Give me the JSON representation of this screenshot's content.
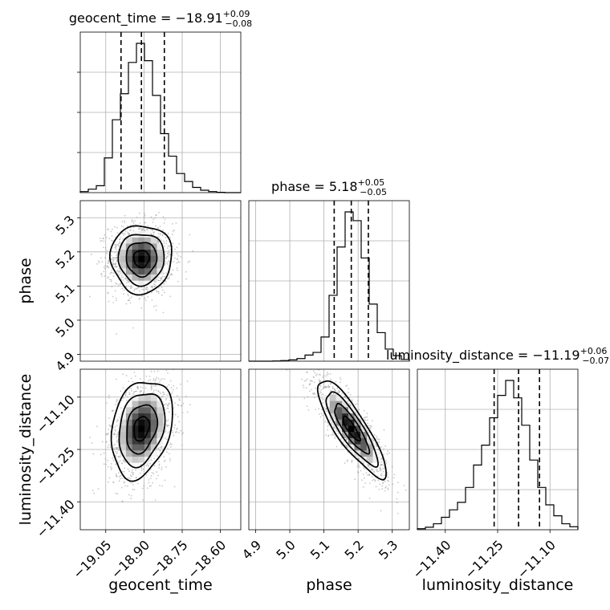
{
  "chart_data": {
    "type": "corner",
    "grid": true,
    "parameters": [
      {
        "name": "geocent_time",
        "xlabel": "geocent_time",
        "ylabel": "",
        "range": [
          -19.15,
          -18.52
        ],
        "ticks": [
          {
            "v": -19.05,
            "label": "−19.05"
          },
          {
            "v": -18.9,
            "label": "−18.90"
          },
          {
            "v": -18.75,
            "label": "−18.75"
          },
          {
            "v": -18.6,
            "label": "−18.60"
          }
        ],
        "title": {
          "main": "geocent_time = −18.91",
          "sup": "+0.09",
          "sub": "−0.08"
        },
        "quantiles": [
          -18.99,
          -18.91,
          -18.82
        ],
        "hist_edges": [
          -19.15,
          -18.52
        ],
        "hist_counts": [
          3,
          10,
          20,
          100,
          210,
          285,
          375,
          430,
          380,
          280,
          170,
          105,
          55,
          32,
          15,
          7,
          3,
          1,
          0,
          0
        ]
      },
      {
        "name": "phase",
        "xlabel": "phase",
        "ylabel": "phase",
        "range": [
          4.88,
          5.35
        ],
        "ticks": [
          {
            "v": 4.9,
            "label": "4.9"
          },
          {
            "v": 5.0,
            "label": "5.0"
          },
          {
            "v": 5.1,
            "label": "5.1"
          },
          {
            "v": 5.2,
            "label": "5.2"
          },
          {
            "v": 5.3,
            "label": "5.3"
          }
        ],
        "title": {
          "main": "phase = 5.18",
          "sup": "+0.05",
          "sub": "−0.05"
        },
        "quantiles": [
          5.13,
          5.18,
          5.23
        ],
        "hist_edges": [
          4.88,
          5.35
        ],
        "hist_counts": [
          0,
          0,
          0,
          1,
          3,
          6,
          12,
          28,
          40,
          110,
          300,
          520,
          680,
          640,
          470,
          260,
          130,
          55,
          25,
          8
        ]
      },
      {
        "name": "luminosity_distance",
        "xlabel": "luminosity_distance",
        "ylabel": "luminosity_distance",
        "range": [
          -11.48,
          -11.02
        ],
        "ticks": [
          {
            "v": -11.4,
            "label": "−11.40"
          },
          {
            "v": -11.25,
            "label": "−11.25"
          },
          {
            "v": -11.1,
            "label": "−11.10"
          }
        ],
        "title": {
          "main": "luminosity_distance = −11.19",
          "sup": "+0.06",
          "sub": "−0.07"
        },
        "quantiles": [
          -11.26,
          -11.19,
          -11.13
        ],
        "hist_edges": [
          -11.48,
          -11.02
        ],
        "hist_counts": [
          2,
          5,
          12,
          25,
          40,
          55,
          85,
          130,
          170,
          225,
          270,
          300,
          265,
          210,
          140,
          85,
          50,
          28,
          12,
          6
        ]
      }
    ],
    "pairs": [
      {
        "x": "geocent_time",
        "y": "phase",
        "center": [
          -18.91,
          5.18
        ],
        "sigma": [
          0.06,
          0.05
        ],
        "rho": 0.0
      },
      {
        "x": "geocent_time",
        "y": "luminosity_distance",
        "center": [
          -18.91,
          -11.19
        ],
        "sigma": [
          0.06,
          0.07
        ],
        "rho": 0.25
      },
      {
        "x": "phase",
        "y": "luminosity_distance",
        "center": [
          5.18,
          -11.19
        ],
        "sigma": [
          0.05,
          0.07
        ],
        "rho": -0.85
      }
    ]
  }
}
